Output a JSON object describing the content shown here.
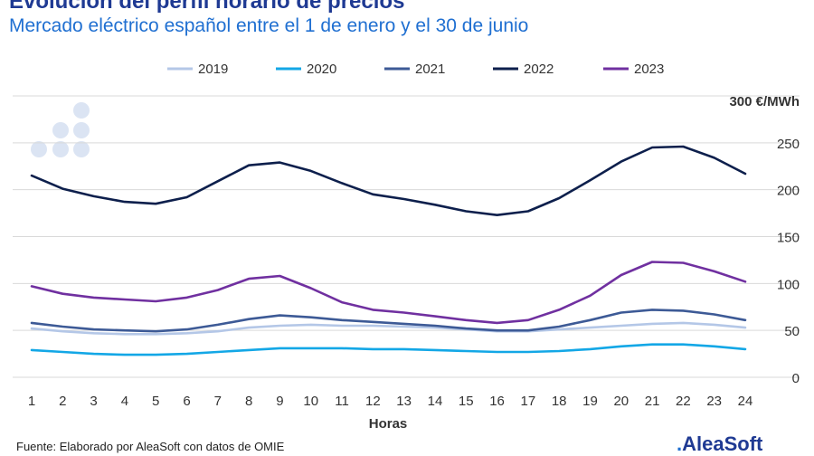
{
  "header": {
    "title": "Evolución del perfil horario de precios",
    "subtitle": "Mercado eléctrico español entre el 1 de enero y el 30 de junio"
  },
  "footer": {
    "source": "Fuente: Elaborado por AleaSoft con datos de OMIE",
    "logo_text": "AleaSoft",
    "logo_mark": "."
  },
  "chart_data": {
    "type": "line",
    "title": "Evolución del perfil horario de precios",
    "subtitle": "Mercado eléctrico español entre el 1 de enero y el 30 de junio",
    "xlabel": "Horas",
    "ylabel": "",
    "y_unit_label": "300 €/MWh",
    "ylim": [
      0,
      300
    ],
    "y_ticks": [
      0,
      50,
      100,
      150,
      200,
      250
    ],
    "legend_position": "top",
    "grid": true,
    "x": [
      1,
      2,
      3,
      4,
      5,
      6,
      7,
      8,
      9,
      10,
      11,
      12,
      13,
      14,
      15,
      16,
      17,
      18,
      19,
      20,
      21,
      22,
      23,
      24
    ],
    "series": [
      {
        "name": "2019",
        "color": "#b4c7e7",
        "values": [
          52,
          49,
          47,
          46,
          46,
          47,
          49,
          53,
          55,
          56,
          55,
          55,
          54,
          53,
          51,
          49,
          49,
          51,
          53,
          55,
          57,
          58,
          56,
          53
        ]
      },
      {
        "name": "2020",
        "color": "#13a7e6",
        "values": [
          29,
          27,
          25,
          24,
          24,
          25,
          27,
          29,
          31,
          31,
          31,
          30,
          30,
          29,
          28,
          27,
          27,
          28,
          30,
          33,
          35,
          35,
          33,
          30
        ]
      },
      {
        "name": "2021",
        "color": "#3d5a96",
        "values": [
          58,
          54,
          51,
          50,
          49,
          51,
          56,
          62,
          66,
          64,
          61,
          59,
          57,
          55,
          52,
          50,
          50,
          54,
          61,
          69,
          72,
          71,
          67,
          61
        ]
      },
      {
        "name": "2022",
        "color": "#0d1f4c",
        "values": [
          215,
          201,
          193,
          187,
          185,
          192,
          209,
          226,
          229,
          220,
          207,
          195,
          190,
          184,
          177,
          173,
          177,
          191,
          210,
          230,
          245,
          246,
          234,
          217
        ]
      },
      {
        "name": "2023",
        "color": "#7030a0",
        "values": [
          97,
          89,
          85,
          83,
          81,
          85,
          93,
          105,
          108,
          95,
          80,
          72,
          69,
          65,
          61,
          58,
          61,
          72,
          87,
          109,
          123,
          122,
          113,
          102
        ]
      }
    ]
  }
}
